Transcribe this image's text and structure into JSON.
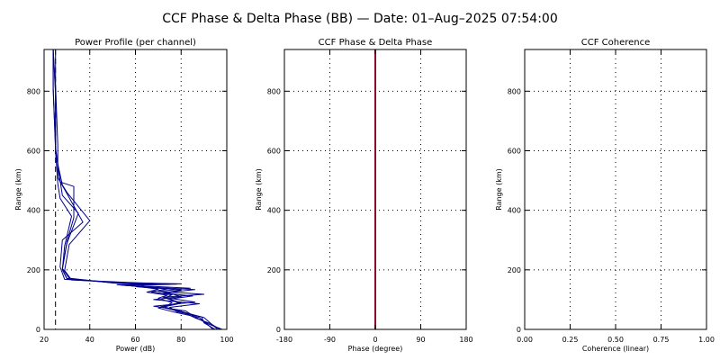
{
  "figure_title": "CCF Phase & Delta Phase (BB) — Date: 01–Aug–2025 07:54:00",
  "colors": {
    "profile": "#00008b",
    "phase": "#8b0a2e",
    "ref_line": "#000000"
  },
  "chart_data": [
    {
      "type": "line",
      "title": "Power Profile (per channel)",
      "xlabel": "Power (dB)",
      "ylabel": "Range (km)",
      "xlim": [
        20,
        100
      ],
      "ylim": [
        0,
        940
      ],
      "xticks": [
        20,
        40,
        60,
        80,
        100
      ],
      "xticklabels": [
        "20",
        "40",
        "60",
        "80",
        "100"
      ],
      "yticks": [
        0,
        200,
        400,
        600,
        800
      ],
      "yticklabels": [
        "0",
        "200",
        "400",
        "600",
        "800"
      ],
      "grid": true,
      "reference_line": {
        "x": 25,
        "style": "dashed"
      },
      "series": [
        {
          "x": [
            96,
            93,
            90,
            80,
            73,
            76,
            70,
            74,
            65,
            70,
            60,
            52,
            70,
            55,
            30,
            28,
            29,
            32,
            27,
            26,
            25,
            25,
            24
          ],
          "y": [
            0,
            20,
            40,
            60,
            75,
            90,
            105,
            115,
            125,
            135,
            145,
            150,
            152,
            155,
            170,
            200,
            280,
            380,
            440,
            490,
            600,
            800,
            940
          ]
        },
        {
          "x": [
            94,
            91,
            88,
            77,
            70,
            80,
            75,
            85,
            72,
            80,
            66,
            55,
            75,
            50,
            31,
            28,
            30,
            35,
            28,
            27,
            25,
            24,
            24
          ],
          "y": [
            0,
            20,
            40,
            58,
            72,
            88,
            102,
            112,
            122,
            132,
            142,
            148,
            151,
            156,
            172,
            205,
            290,
            390,
            450,
            500,
            610,
            810,
            940
          ]
        },
        {
          "x": [
            98,
            92,
            87,
            82,
            68,
            86,
            72,
            90,
            70,
            84,
            64,
            58,
            80,
            53,
            29,
            27,
            28,
            37,
            29,
            26,
            26,
            25,
            25
          ],
          "y": [
            0,
            18,
            38,
            62,
            78,
            92,
            108,
            118,
            128,
            138,
            146,
            151,
            153,
            157,
            168,
            210,
            300,
            360,
            470,
            510,
            620,
            820,
            940
          ]
        },
        {
          "x": [
            95,
            90,
            89,
            78,
            75,
            88,
            68,
            80,
            74,
            86,
            62,
            54,
            78,
            56,
            32,
            29,
            31,
            40,
            30,
            28,
            25,
            25,
            24
          ],
          "y": [
            0,
            22,
            42,
            60,
            74,
            86,
            100,
            110,
            124,
            134,
            144,
            149,
            152,
            158,
            166,
            198,
            285,
            365,
            460,
            485,
            590,
            790,
            940
          ]
        },
        {
          "x": [
            97,
            93,
            86,
            81,
            71,
            79,
            73,
            76,
            67,
            74,
            61,
            57,
            73,
            52,
            30,
            28,
            30,
            33,
            33,
            27,
            25,
            24,
            24
          ],
          "y": [
            0,
            19,
            39,
            57,
            76,
            89,
            106,
            116,
            126,
            136,
            143,
            150,
            154,
            155,
            171,
            202,
            295,
            375,
            480,
            495,
            605,
            805,
            940
          ]
        }
      ]
    },
    {
      "type": "line",
      "title": "CCF Phase & Delta Phase",
      "xlabel": "Phase (degree)",
      "ylabel": "Range (km)",
      "xlim": [
        -180,
        180
      ],
      "ylim": [
        0,
        940
      ],
      "xticks": [
        -180,
        -90,
        0,
        90,
        180
      ],
      "xticklabels": [
        "-180",
        "-90",
        "0",
        "90",
        "180"
      ],
      "yticks": [
        0,
        200,
        400,
        600,
        800
      ],
      "yticklabels": [
        "0",
        "200",
        "400",
        "600",
        "800"
      ],
      "grid": true,
      "series": [
        {
          "x": [
            0,
            0
          ],
          "y": [
            0,
            940
          ]
        }
      ]
    },
    {
      "type": "line",
      "title": "CCF Coherence",
      "xlabel": "Coherence (linear)",
      "ylabel": "Range (km)",
      "xlim": [
        0,
        1
      ],
      "ylim": [
        0,
        940
      ],
      "xticks": [
        0,
        0.25,
        0.5,
        0.75,
        1
      ],
      "xticklabels": [
        "0.00",
        "0.25",
        "0.50",
        "0.75",
        "1.00"
      ],
      "yticks": [
        0,
        200,
        400,
        600,
        800
      ],
      "yticklabels": [
        "0",
        "200",
        "400",
        "600",
        "800"
      ],
      "grid": true,
      "series": []
    }
  ]
}
